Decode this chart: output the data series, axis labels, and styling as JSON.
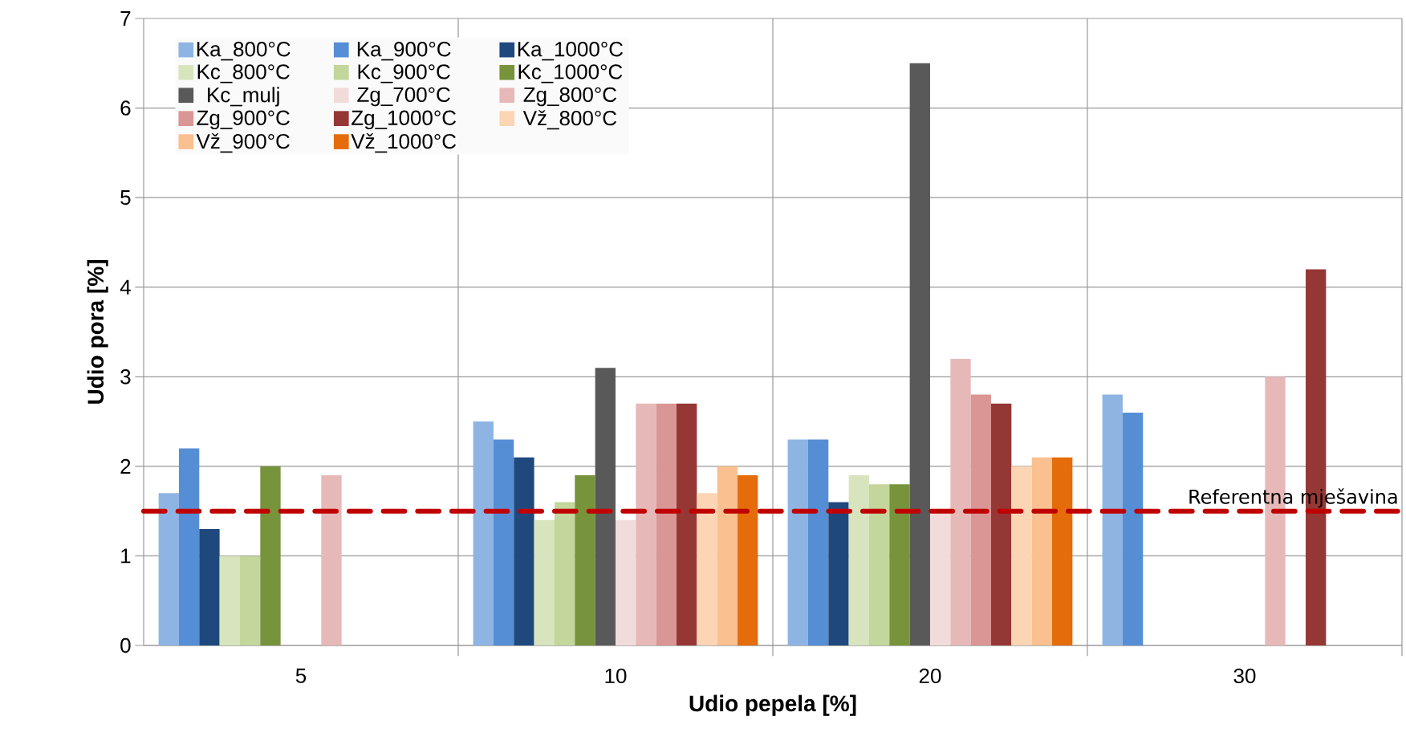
{
  "chart_data": {
    "type": "bar",
    "xlabel": "Udio pepela [%]",
    "ylabel": "Udio pora [%]",
    "categories": [
      "5",
      "10",
      "20",
      "30"
    ],
    "series": [
      {
        "name": "Ka_800°C",
        "color": "#8eb4e3",
        "values": [
          1.7,
          2.5,
          2.3,
          2.8
        ]
      },
      {
        "name": "Ka_900°C",
        "color": "#558ed5",
        "values": [
          2.2,
          2.3,
          2.3,
          2.6
        ]
      },
      {
        "name": "Ka_1000°C",
        "color": "#1f497d",
        "values": [
          1.3,
          2.1,
          1.6,
          null
        ]
      },
      {
        "name": "Kc_800°C",
        "color": "#d7e4bd",
        "values": [
          1.0,
          1.4,
          1.9,
          null
        ]
      },
      {
        "name": "Kc_900°C",
        "color": "#c3d69b",
        "values": [
          1.0,
          1.6,
          1.8,
          null
        ]
      },
      {
        "name": "Kc_1000°C",
        "color": "#77933c",
        "values": [
          2.0,
          1.9,
          1.8,
          null
        ]
      },
      {
        "name": "Kc_mulj",
        "color": "#595959",
        "values": [
          null,
          3.1,
          6.5,
          null
        ]
      },
      {
        "name": "Zg_700°C",
        "color": "#f2dcdb",
        "values": [
          null,
          1.4,
          1.5,
          null
        ]
      },
      {
        "name": "Zg_800°C",
        "color": "#e6b9b8",
        "values": [
          1.9,
          2.7,
          3.2,
          3.0
        ]
      },
      {
        "name": "Zg_900°C",
        "color": "#d99694",
        "values": [
          null,
          2.7,
          2.8,
          null
        ]
      },
      {
        "name": "Zg_1000°C",
        "color": "#953735",
        "values": [
          null,
          2.7,
          2.7,
          4.2
        ]
      },
      {
        "name": "Vž_800°C",
        "color": "#fcd5b5",
        "values": [
          null,
          1.7,
          2.0,
          null
        ]
      },
      {
        "name": "Vž_900°C",
        "color": "#fac090",
        "values": [
          null,
          2.0,
          2.1,
          null
        ]
      },
      {
        "name": "Vž_1000°C",
        "color": "#e46c0a",
        "values": [
          null,
          1.9,
          2.1,
          null
        ]
      }
    ],
    "ylim": [
      0,
      7
    ],
    "yticks": [
      0,
      1,
      2,
      3,
      4,
      5,
      6,
      7
    ],
    "grid": true,
    "legend": "top left",
    "ref_lines": [
      {
        "axis": "y",
        "value": 1.5,
        "label": "Referentna mješavina",
        "color": "#c00000",
        "line_style": "dashed"
      }
    ]
  }
}
